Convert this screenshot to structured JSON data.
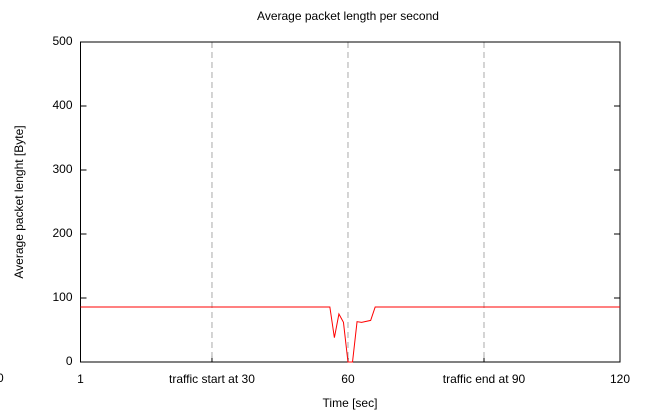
{
  "chart_data": {
    "type": "line",
    "title": "Average packet length per second",
    "x_label": "Time [sec]",
    "y_label": "Average packet lenght [Byte]",
    "annotations": [
      "0"
    ],
    "xlim": [
      1,
      120
    ],
    "xticks": [
      1,
      {
        "value": 30,
        "label": "traffic start at 30"
      },
      60,
      {
        "value": 90,
        "label": "traffic end at 90"
      },
      120
    ],
    "ylim": [
      0,
      500
    ],
    "yticks": [
      0,
      100,
      200,
      300,
      400,
      500
    ],
    "grid": true,
    "series": [
      {
        "name": "Average packet length",
        "color": "#ff0000",
        "x": [
          1,
          56,
          57,
          58,
          59,
          60,
          61,
          62,
          63,
          65,
          66,
          120
        ],
        "values": [
          86,
          86,
          38,
          75,
          62,
          0,
          0,
          63,
          62,
          65,
          86,
          86
        ]
      }
    ]
  }
}
